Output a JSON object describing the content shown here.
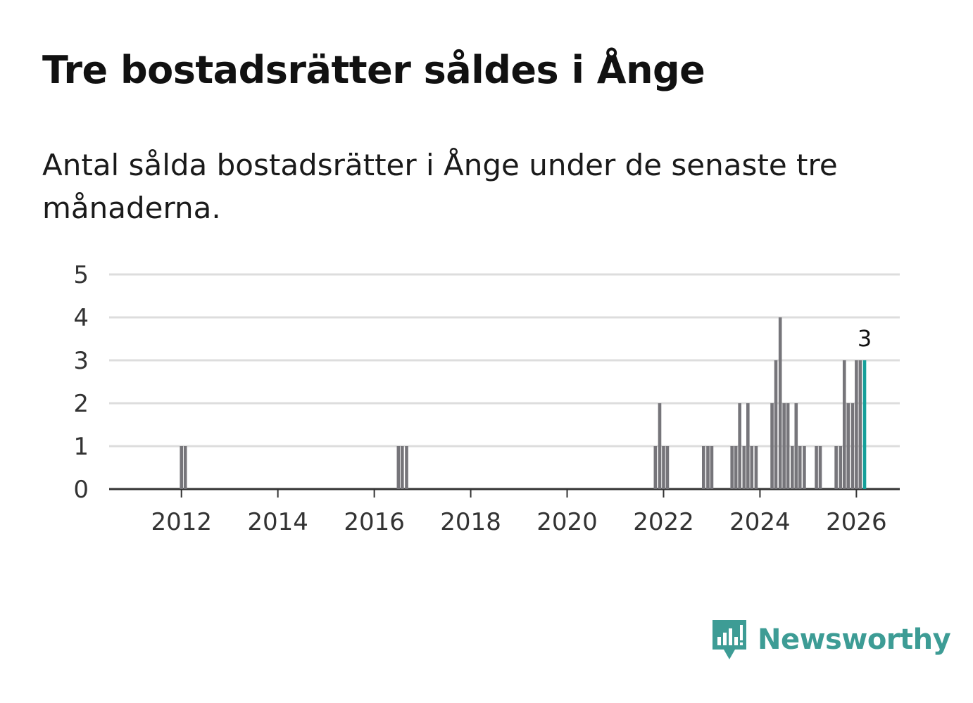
{
  "title": "Tre bostadsrätter såldes i Ånge",
  "subtitle": "Antal sålda bostadsrätter i Ånge under de senaste tre månaderna.",
  "brand": {
    "name": "Newsworthy"
  },
  "colors": {
    "bar": "#76757a",
    "highlight": "#15a09a",
    "grid": "#dddddd",
    "axis": "#333333",
    "brand": "#3d9c95"
  },
  "chart_data": {
    "type": "bar",
    "title": "Tre bostadsrätter såldes i Ånge",
    "xlabel": "",
    "ylabel": "",
    "ylim": [
      0,
      5
    ],
    "yticks": [
      0,
      1,
      2,
      3,
      4,
      5
    ],
    "xticks": [
      "2012",
      "2014",
      "2016",
      "2018",
      "2020",
      "2022",
      "2024",
      "2026"
    ],
    "x_range": [
      2010.5,
      2026.9
    ],
    "series": [
      {
        "name": "Antal sålda bostadsrätter",
        "points": [
          {
            "x": 2012.0,
            "value": 1
          },
          {
            "x": 2012.08,
            "value": 1
          },
          {
            "x": 2016.5,
            "value": 1
          },
          {
            "x": 2016.58,
            "value": 1
          },
          {
            "x": 2016.67,
            "value": 1
          },
          {
            "x": 2021.83,
            "value": 1
          },
          {
            "x": 2021.92,
            "value": 2
          },
          {
            "x": 2022.0,
            "value": 1
          },
          {
            "x": 2022.08,
            "value": 1
          },
          {
            "x": 2022.83,
            "value": 1
          },
          {
            "x": 2022.92,
            "value": 1
          },
          {
            "x": 2023.0,
            "value": 1
          },
          {
            "x": 2023.42,
            "value": 1
          },
          {
            "x": 2023.5,
            "value": 1
          },
          {
            "x": 2023.58,
            "value": 2
          },
          {
            "x": 2023.67,
            "value": 1
          },
          {
            "x": 2023.75,
            "value": 2
          },
          {
            "x": 2023.83,
            "value": 1
          },
          {
            "x": 2023.92,
            "value": 1
          },
          {
            "x": 2024.25,
            "value": 2
          },
          {
            "x": 2024.33,
            "value": 3
          },
          {
            "x": 2024.42,
            "value": 4
          },
          {
            "x": 2024.5,
            "value": 2
          },
          {
            "x": 2024.58,
            "value": 2
          },
          {
            "x": 2024.67,
            "value": 1
          },
          {
            "x": 2024.75,
            "value": 2
          },
          {
            "x": 2024.83,
            "value": 1
          },
          {
            "x": 2024.92,
            "value": 1
          },
          {
            "x": 2025.17,
            "value": 1
          },
          {
            "x": 2025.25,
            "value": 1
          },
          {
            "x": 2025.58,
            "value": 1
          },
          {
            "x": 2025.67,
            "value": 1
          },
          {
            "x": 2025.75,
            "value": 3
          },
          {
            "x": 2025.83,
            "value": 2
          },
          {
            "x": 2025.92,
            "value": 2
          },
          {
            "x": 2026.0,
            "value": 3
          },
          {
            "x": 2026.08,
            "value": 3
          },
          {
            "x": 2026.17,
            "value": 3,
            "highlight": true,
            "label": "3"
          }
        ]
      }
    ]
  }
}
